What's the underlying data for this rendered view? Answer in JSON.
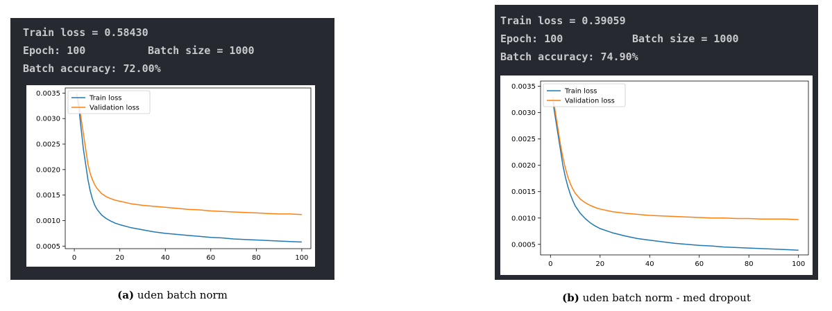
{
  "panels": [
    {
      "console": {
        "line1": "Train loss = 0.58430",
        "line2_left": "Epoch: 100",
        "line2_right": "Batch size = 1000",
        "line3": "Batch accuracy: 72.00%"
      },
      "caption": {
        "label": "(a)",
        "text": " uden batch norm"
      },
      "chart_data": {
        "type": "line",
        "xlim": [
          -4,
          104
        ],
        "ylim": [
          0.00045,
          0.0036
        ],
        "xticks": [
          0,
          20,
          40,
          60,
          80,
          100
        ],
        "yticks": [
          0.0005,
          0.001,
          0.0015,
          0.002,
          0.0025,
          0.003,
          0.0035
        ],
        "xtick_labels": [
          "0",
          "20",
          "40",
          "60",
          "80",
          "100"
        ],
        "ytick_labels": [
          "0.0005",
          "0.0010",
          "0.0015",
          "0.0020",
          "0.0025",
          "0.0030",
          "0.0035"
        ],
        "legend_position": "top-left",
        "grid": false,
        "series": [
          {
            "name": "Train loss",
            "color": "#1f77b4",
            "x": [
              1,
              2,
              3,
              4,
              5,
              6,
              7,
              8,
              9,
              10,
              12,
              14,
              16,
              18,
              20,
              25,
              30,
              35,
              40,
              45,
              50,
              55,
              60,
              65,
              70,
              75,
              80,
              85,
              90,
              95,
              100
            ],
            "y": [
              0.0035,
              0.0032,
              0.0028,
              0.0024,
              0.0021,
              0.0018,
              0.00158,
              0.00142,
              0.0013,
              0.00122,
              0.00111,
              0.00104,
              0.00099,
              0.00095,
              0.00092,
              0.00086,
              0.00082,
              0.00078,
              0.00075,
              0.00073,
              0.00071,
              0.00069,
              0.00067,
              0.00066,
              0.00064,
              0.00063,
              0.00062,
              0.00061,
              0.0006,
              0.00059,
              0.00058
            ]
          },
          {
            "name": "Validation loss",
            "color": "#ff7f0e",
            "x": [
              1,
              2,
              3,
              4,
              5,
              6,
              7,
              8,
              9,
              10,
              12,
              14,
              16,
              18,
              20,
              25,
              30,
              35,
              40,
              45,
              50,
              55,
              60,
              65,
              70,
              75,
              80,
              85,
              90,
              95,
              100
            ],
            "y": [
              0.0035,
              0.0033,
              0.003,
              0.0027,
              0.0024,
              0.0021,
              0.00192,
              0.0018,
              0.0017,
              0.00163,
              0.00153,
              0.00147,
              0.00143,
              0.0014,
              0.00138,
              0.00133,
              0.0013,
              0.00128,
              0.00126,
              0.00124,
              0.00122,
              0.00121,
              0.00119,
              0.00118,
              0.00117,
              0.00116,
              0.00115,
              0.00114,
              0.00113,
              0.00113,
              0.00112
            ]
          }
        ]
      }
    },
    {
      "console": {
        "line1": "Train loss = 0.39059",
        "line2_left": "Epoch: 100",
        "line2_right": "Batch size = 1000",
        "line3": "Batch accuracy: 74.90%"
      },
      "caption": {
        "label": "(b)",
        "text": " uden batch norm - med dropout"
      },
      "chart_data": {
        "type": "line",
        "xlim": [
          -4,
          104
        ],
        "ylim": [
          0.0003,
          0.0036
        ],
        "xticks": [
          0,
          20,
          40,
          60,
          80,
          100
        ],
        "yticks": [
          0.0005,
          0.001,
          0.0015,
          0.002,
          0.0025,
          0.003,
          0.0035
        ],
        "xtick_labels": [
          "0",
          "20",
          "40",
          "60",
          "80",
          "100"
        ],
        "ytick_labels": [
          "0.0005",
          "0.0010",
          "0.0015",
          "0.0020",
          "0.0025",
          "0.0030",
          "0.0035"
        ],
        "legend_position": "top-left",
        "grid": false,
        "series": [
          {
            "name": "Train loss",
            "color": "#1f77b4",
            "x": [
              1,
              2,
              3,
              4,
              5,
              6,
              7,
              8,
              9,
              10,
              12,
              14,
              16,
              18,
              20,
              25,
              30,
              35,
              40,
              45,
              50,
              55,
              60,
              65,
              70,
              75,
              80,
              85,
              90,
              95,
              100
            ],
            "y": [
              0.0032,
              0.0029,
              0.0026,
              0.0023,
              0.002,
              0.00178,
              0.0016,
              0.00145,
              0.00133,
              0.00123,
              0.00109,
              0.00099,
              0.00091,
              0.00085,
              0.0008,
              0.00072,
              0.00066,
              0.00061,
              0.00058,
              0.00055,
              0.00052,
              0.0005,
              0.00048,
              0.00047,
              0.00045,
              0.00044,
              0.00043,
              0.00042,
              0.00041,
              0.0004,
              0.00039
            ]
          },
          {
            "name": "Validation loss",
            "color": "#ff7f0e",
            "x": [
              1,
              2,
              3,
              4,
              5,
              6,
              7,
              8,
              9,
              10,
              12,
              14,
              16,
              18,
              20,
              25,
              30,
              35,
              40,
              45,
              50,
              55,
              60,
              65,
              70,
              75,
              80,
              85,
              90,
              95,
              100
            ],
            "y": [
              0.0033,
              0.003,
              0.0027,
              0.0024,
              0.00215,
              0.00195,
              0.00178,
              0.00165,
              0.00155,
              0.00147,
              0.00136,
              0.00129,
              0.00124,
              0.0012,
              0.00117,
              0.00112,
              0.00109,
              0.00107,
              0.00105,
              0.00104,
              0.00103,
              0.00102,
              0.00101,
              0.001,
              0.001,
              0.00099,
              0.00099,
              0.00098,
              0.00098,
              0.00098,
              0.00097
            ]
          }
        ]
      }
    }
  ]
}
